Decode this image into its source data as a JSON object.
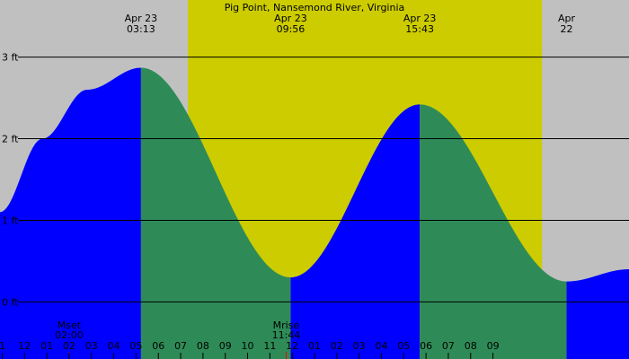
{
  "chart_data": {
    "type": "area",
    "title": "Pig Point, Nansemond River, Virginia",
    "y_unit": "ft",
    "ylim": [
      -0.7,
      3.7
    ],
    "y_ticks": [
      {
        "value": 3,
        "label": "3 ft"
      },
      {
        "value": 2,
        "label": "2 ft"
      },
      {
        "value": 1,
        "label": "1 ft"
      },
      {
        "value": 0,
        "label": "0 ft"
      }
    ],
    "x_unit": "hour of day",
    "xlim": [
      -3.1,
      25.1
    ],
    "hour_ticks": [
      {
        "hour": -3,
        "label": "1"
      },
      {
        "hour": -2,
        "label": "12"
      },
      {
        "hour": -1,
        "label": "01"
      },
      {
        "hour": 0,
        "label": "02"
      },
      {
        "hour": 1,
        "label": "03"
      },
      {
        "hour": 2,
        "label": "04"
      },
      {
        "hour": 3,
        "label": "05"
      },
      {
        "hour": 4,
        "label": "06"
      },
      {
        "hour": 5,
        "label": "07"
      },
      {
        "hour": 6,
        "label": "08"
      },
      {
        "hour": 7,
        "label": "09"
      },
      {
        "hour": 8,
        "label": "10"
      },
      {
        "hour": 9,
        "label": "11"
      },
      {
        "hour": 10,
        "label": "12"
      },
      {
        "hour": 11,
        "label": "01"
      },
      {
        "hour": 12,
        "label": "02"
      },
      {
        "hour": 13,
        "label": "03"
      },
      {
        "hour": 14,
        "label": "04"
      },
      {
        "hour": 15,
        "label": "05"
      },
      {
        "hour": 16,
        "label": "06"
      },
      {
        "hour": 17,
        "label": "07"
      },
      {
        "hour": 18,
        "label": "08"
      },
      {
        "hour": 19,
        "label": "09"
      }
    ],
    "daylight": {
      "start_hour": 5.32,
      "end_hour": 21.2
    },
    "tide_events": [
      {
        "hour": 3.22,
        "type": "high",
        "height_ft": 2.87,
        "date_label": "Apr 23",
        "time_label": "03:13"
      },
      {
        "hour": 9.93,
        "type": "low",
        "height_ft": 0.3,
        "date_label": "Apr 23",
        "time_label": "09:56"
      },
      {
        "hour": 15.72,
        "type": "high",
        "height_ft": 2.42,
        "date_label": "Apr 23",
        "time_label": "15:43"
      },
      {
        "hour": 22.3,
        "type": "low",
        "height_ft": 0.25,
        "date_label": "Apr",
        "time_label": "22"
      }
    ],
    "tide_curve_points": [
      {
        "hour": -3.1,
        "height_ft": 1.1
      },
      {
        "hour": -1.2,
        "height_ft": 2.0
      },
      {
        "hour": 0.8,
        "height_ft": 2.6
      },
      {
        "hour": 3.22,
        "height_ft": 2.87
      },
      {
        "hour": 9.93,
        "height_ft": 0.3
      },
      {
        "hour": 15.72,
        "height_ft": 2.42
      },
      {
        "hour": 22.3,
        "height_ft": 0.25
      },
      {
        "hour": 25.1,
        "height_ft": 0.4
      }
    ],
    "rising_color": "#0000ff",
    "falling_color": "#2e8b57",
    "daylight_color": "#cccc00",
    "night_color": "#c0c0c0",
    "moon_events": [
      {
        "hour": 0.0,
        "label": "Mset",
        "time_label": "02:00"
      },
      {
        "hour": 9.73,
        "label": "Mrise",
        "time_label": "11:44"
      }
    ],
    "moon_marker_color": "#ff0000"
  }
}
